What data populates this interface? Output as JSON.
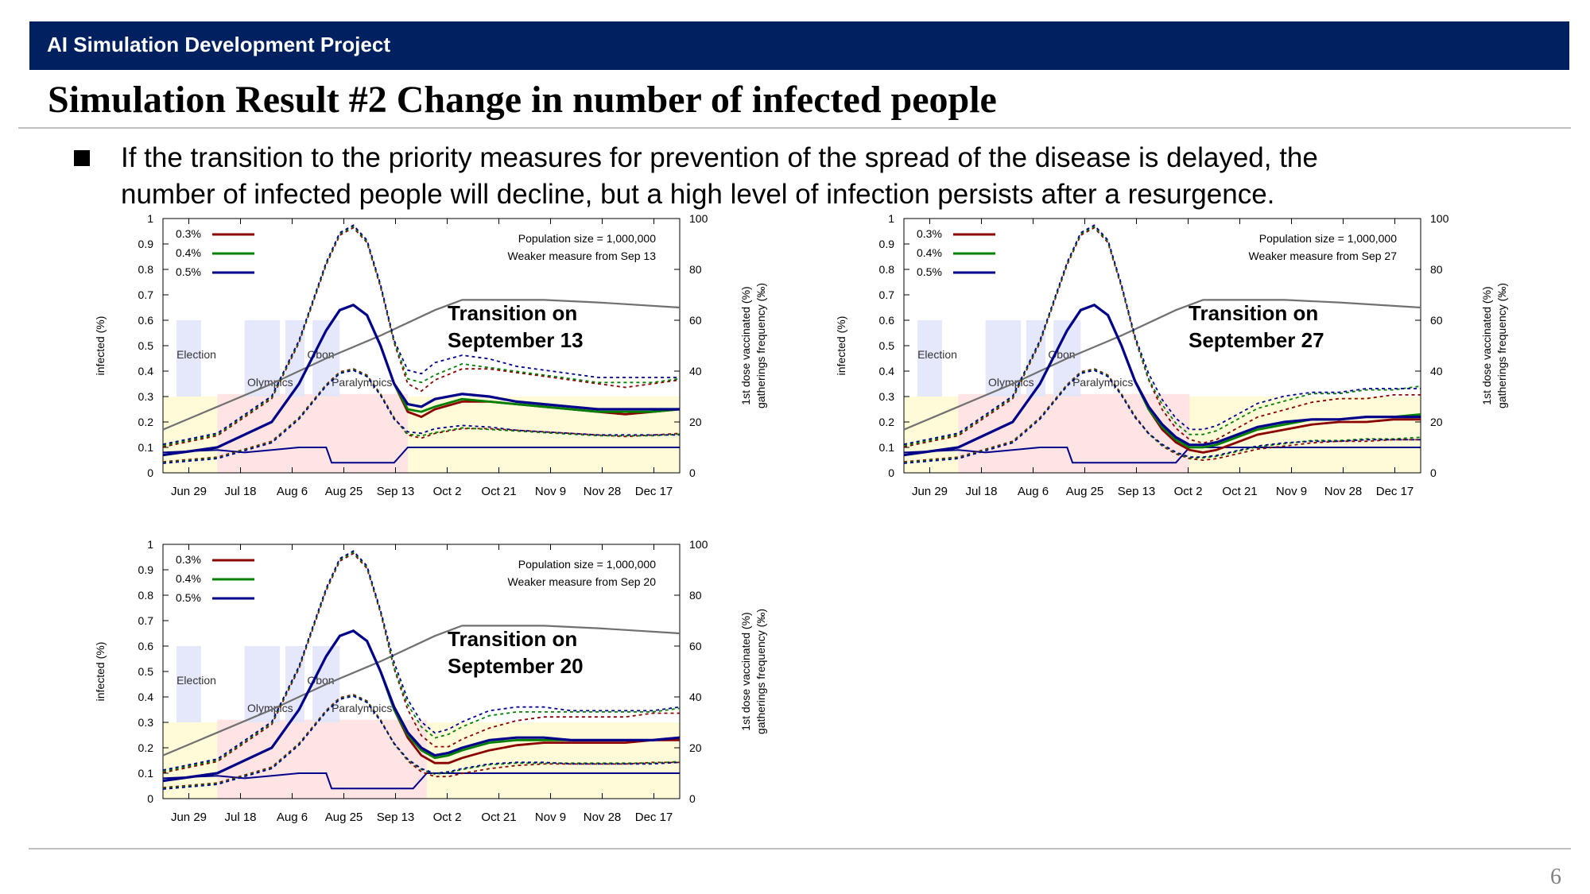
{
  "header": {
    "title": "AI Simulation Development Project"
  },
  "page": {
    "title": "Simulation Result #2 Change in number of infected people",
    "bullet_lines": [
      "If the transition to the priority measures for prevention of the spread of the disease is delayed, the",
      "number of infected people will decline, but a high level of infection persists after a resurgence."
    ],
    "page_number": "6"
  },
  "colors": {
    "header_bg": "#002060",
    "series_0_3": "#8b0000",
    "series_0_4": "#008000",
    "series_0_5": "#00008b",
    "vaccinated": "#707070",
    "gatherings": "#00008b",
    "band_yellow": "#fffbd8",
    "band_pink": "#ffe4e4",
    "event_blue": "#e2e4fa"
  },
  "chart_data": [
    {
      "type": "line",
      "transition_label": [
        "Transition on",
        "September 13"
      ],
      "info_lines": [
        "Population size = 1,000,000",
        "Weaker measure from Sep 13"
      ],
      "ylabel_left": "infected (%)",
      "ylabel_right": [
        "1st dose vaccinated (%)",
        "gatherings frequency (‰)"
      ],
      "x_ticks": [
        "Jun 29",
        "Jul 18",
        "Aug 6",
        "Aug 25",
        "Sep 13",
        "Oct 2",
        "Oct 21",
        "Nov 9",
        "Nov 28",
        "Dec 17"
      ],
      "y_ticks_left": [
        "0",
        "0.1",
        "0.2",
        "0.3",
        "0.4",
        "0.5",
        "0.6",
        "0.7",
        "0.8",
        "0.9",
        "1"
      ],
      "y_ticks_right": [
        "0",
        "20",
        "40",
        "60",
        "80",
        "100"
      ],
      "ylim_left": [
        0,
        1
      ],
      "ylim_right": [
        0,
        100
      ],
      "legend": [
        "0.3%",
        "0.4%",
        "0.5%"
      ],
      "events": [
        "Election",
        "Olympics",
        "Obon",
        "Paralympics"
      ],
      "series": [
        {
          "name": "0.3%",
          "x": [
            0,
            20,
            40,
            50,
            60,
            65,
            70,
            75,
            80,
            85,
            90,
            95,
            100,
            110,
            120,
            130,
            140,
            150,
            160,
            170,
            180,
            190
          ],
          "y": [
            0.07,
            0.1,
            0.2,
            0.35,
            0.56,
            0.64,
            0.66,
            0.62,
            0.5,
            0.35,
            0.24,
            0.22,
            0.25,
            0.28,
            0.28,
            0.27,
            0.26,
            0.25,
            0.24,
            0.23,
            0.24,
            0.25
          ]
        },
        {
          "name": "0.4%",
          "x": [
            0,
            20,
            40,
            50,
            60,
            65,
            70,
            75,
            80,
            85,
            90,
            95,
            100,
            110,
            120,
            130,
            140,
            150,
            160,
            170,
            180,
            190
          ],
          "y": [
            0.07,
            0.1,
            0.2,
            0.35,
            0.56,
            0.64,
            0.66,
            0.62,
            0.5,
            0.35,
            0.25,
            0.24,
            0.26,
            0.29,
            0.28,
            0.27,
            0.26,
            0.25,
            0.24,
            0.24,
            0.24,
            0.25
          ]
        },
        {
          "name": "0.5%",
          "x": [
            0,
            20,
            40,
            50,
            60,
            65,
            70,
            75,
            80,
            85,
            90,
            95,
            100,
            110,
            120,
            130,
            140,
            150,
            160,
            170,
            180,
            190
          ],
          "y": [
            0.07,
            0.1,
            0.2,
            0.35,
            0.56,
            0.64,
            0.66,
            0.62,
            0.5,
            0.35,
            0.27,
            0.26,
            0.29,
            0.31,
            0.3,
            0.28,
            0.27,
            0.26,
            0.25,
            0.25,
            0.25,
            0.25
          ]
        }
      ],
      "vaccinated": {
        "x": [
          0,
          20,
          40,
          60,
          80,
          100,
          110,
          120,
          140,
          160,
          190
        ],
        "y": [
          17,
          26,
          35,
          45,
          54,
          64,
          68,
          68,
          68,
          67,
          65
        ]
      },
      "gatherings": {
        "x": [
          0,
          20,
          30,
          40,
          50,
          60,
          62,
          80,
          85,
          90,
          190
        ],
        "y": [
          8,
          9,
          8,
          9,
          10,
          10,
          4,
          4,
          4,
          10,
          10
        ]
      }
    },
    {
      "type": "line",
      "transition_label": [
        "Transition on",
        "September 27"
      ],
      "info_lines": [
        "Population size = 1,000,000",
        "Weaker measure from Sep 27"
      ],
      "ylabel_left": "infected (%)",
      "ylabel_right": [
        "1st dose vaccinated (%)",
        "gatherings frequency (‰)"
      ],
      "x_ticks": [
        "Jun 29",
        "Jul 18",
        "Aug 6",
        "Aug 25",
        "Sep 13",
        "Oct 2",
        "Oct 21",
        "Nov 9",
        "Nov 28",
        "Dec 17"
      ],
      "y_ticks_left": [
        "0",
        "0.1",
        "0.2",
        "0.3",
        "0.4",
        "0.5",
        "0.6",
        "0.7",
        "0.8",
        "0.9",
        "1"
      ],
      "y_ticks_right": [
        "0",
        "20",
        "40",
        "60",
        "80",
        "100"
      ],
      "ylim_left": [
        0,
        1
      ],
      "ylim_right": [
        0,
        100
      ],
      "legend": [
        "0.3%",
        "0.4%",
        "0.5%"
      ],
      "events": [
        "Election",
        "Olympics",
        "Obon",
        "Paralympics"
      ],
      "series": [
        {
          "name": "0.3%",
          "x": [
            0,
            20,
            40,
            50,
            60,
            65,
            70,
            75,
            80,
            85,
            90,
            95,
            100,
            105,
            110,
            115,
            120,
            130,
            140,
            150,
            160,
            170,
            180,
            190
          ],
          "y": [
            0.07,
            0.1,
            0.2,
            0.35,
            0.56,
            0.64,
            0.66,
            0.62,
            0.5,
            0.36,
            0.25,
            0.17,
            0.12,
            0.09,
            0.08,
            0.09,
            0.11,
            0.15,
            0.17,
            0.19,
            0.2,
            0.2,
            0.21,
            0.21
          ]
        },
        {
          "name": "0.4%",
          "x": [
            0,
            20,
            40,
            50,
            60,
            65,
            70,
            75,
            80,
            85,
            90,
            95,
            100,
            105,
            110,
            115,
            120,
            130,
            140,
            150,
            160,
            170,
            180,
            190
          ],
          "y": [
            0.07,
            0.1,
            0.2,
            0.35,
            0.56,
            0.64,
            0.66,
            0.62,
            0.5,
            0.36,
            0.25,
            0.18,
            0.13,
            0.1,
            0.1,
            0.11,
            0.13,
            0.17,
            0.19,
            0.21,
            0.21,
            0.22,
            0.22,
            0.23
          ]
        },
        {
          "name": "0.5%",
          "x": [
            0,
            20,
            40,
            50,
            60,
            65,
            70,
            75,
            80,
            85,
            90,
            95,
            100,
            105,
            110,
            115,
            120,
            130,
            140,
            150,
            160,
            170,
            180,
            190
          ],
          "y": [
            0.07,
            0.1,
            0.2,
            0.35,
            0.56,
            0.64,
            0.66,
            0.62,
            0.5,
            0.36,
            0.26,
            0.19,
            0.14,
            0.11,
            0.11,
            0.12,
            0.14,
            0.18,
            0.2,
            0.21,
            0.21,
            0.22,
            0.22,
            0.22
          ]
        }
      ],
      "vaccinated": {
        "x": [
          0,
          20,
          40,
          60,
          80,
          100,
          110,
          120,
          140,
          160,
          190
        ],
        "y": [
          17,
          26,
          35,
          45,
          54,
          64,
          68,
          68,
          68,
          67,
          65
        ]
      },
      "gatherings": {
        "x": [
          0,
          20,
          30,
          40,
          50,
          60,
          62,
          95,
          100,
          105,
          190
        ],
        "y": [
          8,
          9,
          8,
          9,
          10,
          10,
          4,
          4,
          4,
          10,
          10
        ]
      }
    },
    {
      "type": "line",
      "transition_label": [
        "Transition on",
        "September 20"
      ],
      "info_lines": [
        "Population size = 1,000,000",
        "Weaker measure from Sep 20"
      ],
      "ylabel_left": "infected (%)",
      "ylabel_right": [
        "1st dose vaccinated (%)",
        "gatherings frequency (‰)"
      ],
      "x_ticks": [
        "Jun 29",
        "Jul 18",
        "Aug 6",
        "Aug 25",
        "Sep 13",
        "Oct 2",
        "Oct 21",
        "Nov 9",
        "Nov 28",
        "Dec 17"
      ],
      "y_ticks_left": [
        "0",
        "0.1",
        "0.2",
        "0.3",
        "0.4",
        "0.5",
        "0.6",
        "0.7",
        "0.8",
        "0.9",
        "1"
      ],
      "y_ticks_right": [
        "0",
        "20",
        "40",
        "60",
        "80",
        "100"
      ],
      "ylim_left": [
        0,
        1
      ],
      "ylim_right": [
        0,
        100
      ],
      "legend": [
        "0.3%",
        "0.4%",
        "0.5%"
      ],
      "events": [
        "Election",
        "Olympics",
        "Obon",
        "Paralympics"
      ],
      "series": [
        {
          "name": "0.3%",
          "x": [
            0,
            20,
            40,
            50,
            60,
            65,
            70,
            75,
            80,
            85,
            90,
            95,
            100,
            105,
            110,
            120,
            130,
            140,
            150,
            160,
            170,
            180,
            190
          ],
          "y": [
            0.07,
            0.1,
            0.2,
            0.35,
            0.56,
            0.64,
            0.66,
            0.62,
            0.5,
            0.35,
            0.24,
            0.17,
            0.14,
            0.14,
            0.16,
            0.19,
            0.21,
            0.22,
            0.22,
            0.22,
            0.22,
            0.23,
            0.23
          ]
        },
        {
          "name": "0.4%",
          "x": [
            0,
            20,
            40,
            50,
            60,
            65,
            70,
            75,
            80,
            85,
            90,
            95,
            100,
            105,
            110,
            120,
            130,
            140,
            150,
            160,
            170,
            180,
            190
          ],
          "y": [
            0.07,
            0.1,
            0.2,
            0.35,
            0.56,
            0.64,
            0.66,
            0.62,
            0.5,
            0.35,
            0.25,
            0.19,
            0.16,
            0.17,
            0.19,
            0.22,
            0.23,
            0.23,
            0.23,
            0.23,
            0.23,
            0.23,
            0.24
          ]
        },
        {
          "name": "0.5%",
          "x": [
            0,
            20,
            40,
            50,
            60,
            65,
            70,
            75,
            80,
            85,
            90,
            95,
            100,
            105,
            110,
            120,
            130,
            140,
            150,
            160,
            170,
            180,
            190
          ],
          "y": [
            0.07,
            0.1,
            0.2,
            0.35,
            0.56,
            0.64,
            0.66,
            0.62,
            0.5,
            0.36,
            0.26,
            0.2,
            0.17,
            0.18,
            0.2,
            0.23,
            0.24,
            0.24,
            0.23,
            0.23,
            0.23,
            0.23,
            0.24
          ]
        }
      ],
      "vaccinated": {
        "x": [
          0,
          20,
          40,
          60,
          80,
          100,
          110,
          120,
          140,
          160,
          190
        ],
        "y": [
          17,
          26,
          35,
          45,
          54,
          64,
          68,
          68,
          68,
          67,
          65
        ]
      },
      "gatherings": {
        "x": [
          0,
          20,
          30,
          40,
          50,
          60,
          62,
          87,
          92,
          97,
          190
        ],
        "y": [
          8,
          9,
          8,
          9,
          10,
          10,
          4,
          4,
          4,
          10,
          10
        ]
      }
    }
  ]
}
